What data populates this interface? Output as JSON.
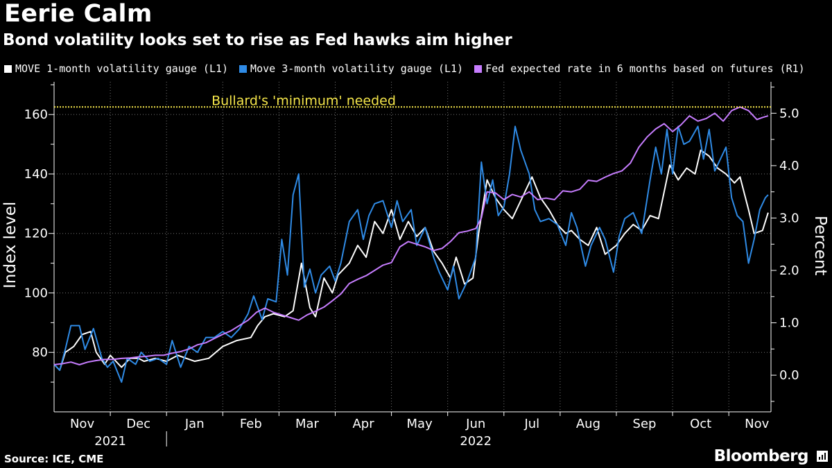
{
  "title": "Eerie Calm",
  "subtitle": "Bond volatility looks set to rise as Fed hawks aim higher",
  "source": "Source: ICE, CME",
  "brand": "Bloomberg",
  "chart_data": {
    "type": "line",
    "title": "Eerie Calm",
    "subtitle": "Bond volatility looks set to rise as Fed hawks aim higher",
    "x_unit": "months since Nov 1, 2021",
    "x_range": [
      0,
      12.75
    ],
    "x_ticks": [
      {
        "x": 0.5,
        "label": "Nov"
      },
      {
        "x": 1.5,
        "label": "Dec"
      },
      {
        "x": 2.5,
        "label": "Jan"
      },
      {
        "x": 3.5,
        "label": "Feb"
      },
      {
        "x": 4.5,
        "label": "Mar"
      },
      {
        "x": 5.5,
        "label": "Apr"
      },
      {
        "x": 6.5,
        "label": "May"
      },
      {
        "x": 7.5,
        "label": "Jun"
      },
      {
        "x": 8.5,
        "label": "Jul"
      },
      {
        "x": 9.5,
        "label": "Aug"
      },
      {
        "x": 10.5,
        "label": "Sep"
      },
      {
        "x": 11.5,
        "label": "Oct"
      },
      {
        "x": 12.5,
        "label": "Nov"
      }
    ],
    "year_labels": [
      {
        "x": 1.0,
        "label": "2021"
      },
      {
        "x": 7.5,
        "label": "2022"
      }
    ],
    "left_axis": {
      "label": "Index level",
      "range": [
        60,
        171
      ],
      "ticks": [
        80,
        100,
        120,
        140,
        160
      ]
    },
    "right_axis": {
      "label": "Percent",
      "range": [
        -0.7,
        5.6
      ],
      "ticks": [
        0.0,
        1.0,
        2.0,
        3.0,
        4.0,
        5.0
      ],
      "tick_labels": [
        "0.0",
        "1.0",
        "2.0",
        "3.0",
        "4.0",
        "5.0"
      ]
    },
    "reference_line": {
      "axis": "right",
      "value": 5.12,
      "label": "Bullard's 'minimum' needed",
      "color": "#f5e64a"
    },
    "series": [
      {
        "name": "MOVE 1-month volatility gauge (L1)",
        "axis": "left",
        "color": "#ffffff",
        "x": [
          0.0,
          0.1,
          0.2,
          0.35,
          0.5,
          0.65,
          0.75,
          0.9,
          1.0,
          1.2,
          1.35,
          1.5,
          1.6,
          1.8,
          2.0,
          2.2,
          2.5,
          2.75,
          3.0,
          3.25,
          3.5,
          3.62,
          3.75,
          3.9,
          4.1,
          4.25,
          4.4,
          4.55,
          4.65,
          4.8,
          4.95,
          5.05,
          5.25,
          5.4,
          5.55,
          5.7,
          5.85,
          6.0,
          6.15,
          6.3,
          6.45,
          6.6,
          6.75,
          6.9,
          7.05,
          7.15,
          7.3,
          7.45,
          7.55,
          7.7,
          7.85,
          8.0,
          8.15,
          8.3,
          8.5,
          8.65,
          8.8,
          8.95,
          9.1,
          9.2,
          9.35,
          9.5,
          9.65,
          9.8,
          10.0,
          10.15,
          10.3,
          10.45,
          10.6,
          10.75,
          10.85,
          10.95,
          11.1,
          11.25,
          11.4,
          11.5,
          11.65,
          11.8,
          11.95,
          12.1,
          12.2,
          12.35,
          12.45,
          12.6,
          12.7
        ],
        "y": [
          76,
          74,
          80,
          82,
          86,
          87,
          80,
          76,
          79,
          75,
          78,
          78,
          77,
          78,
          77,
          79,
          77,
          78,
          82,
          84,
          85,
          89,
          92,
          93,
          92,
          94,
          110,
          95,
          92,
          105,
          100,
          106,
          110,
          116,
          112,
          124,
          120,
          128,
          118,
          124,
          119,
          122,
          114,
          110,
          105,
          112,
          103,
          105,
          120,
          138,
          132,
          128,
          125,
          131,
          139,
          132,
          128,
          123,
          120,
          121,
          118,
          116,
          122,
          113,
          116,
          120,
          123,
          121,
          126,
          125,
          134,
          143,
          138,
          142,
          140,
          148,
          146,
          142,
          140,
          137,
          139,
          128,
          120,
          121,
          127
        ]
      },
      {
        "name": "Move 3-month volatility gauge (L1)",
        "axis": "left",
        "color": "#2f8be6",
        "x": [
          0.0,
          0.1,
          0.2,
          0.3,
          0.45,
          0.55,
          0.7,
          0.85,
          0.95,
          1.05,
          1.2,
          1.3,
          1.45,
          1.55,
          1.7,
          1.85,
          2.0,
          2.1,
          2.25,
          2.4,
          2.55,
          2.7,
          2.85,
          3.0,
          3.15,
          3.3,
          3.45,
          3.55,
          3.7,
          3.8,
          3.95,
          4.05,
          4.15,
          4.25,
          4.35,
          4.45,
          4.55,
          4.65,
          4.75,
          4.9,
          5.0,
          5.1,
          5.25,
          5.4,
          5.5,
          5.6,
          5.7,
          5.85,
          6.0,
          6.1,
          6.2,
          6.35,
          6.45,
          6.6,
          6.75,
          6.85,
          7.0,
          7.1,
          7.2,
          7.35,
          7.5,
          7.6,
          7.7,
          7.8,
          7.9,
          8.0,
          8.1,
          8.2,
          8.3,
          8.45,
          8.55,
          8.65,
          8.8,
          8.95,
          9.1,
          9.2,
          9.3,
          9.45,
          9.55,
          9.7,
          9.8,
          9.95,
          10.05,
          10.15,
          10.3,
          10.45,
          10.6,
          10.7,
          10.8,
          10.9,
          11.0,
          11.1,
          11.2,
          11.3,
          11.45,
          11.55,
          11.65,
          11.75,
          11.85,
          11.95,
          12.05,
          12.15,
          12.25,
          12.35,
          12.45,
          12.55,
          12.65,
          12.7
        ],
        "y": [
          76,
          74,
          81,
          89,
          89,
          81,
          88,
          78,
          75,
          77,
          70,
          78,
          76,
          80,
          77,
          78,
          76,
          84,
          75,
          82,
          80,
          85,
          85,
          87,
          85,
          88,
          93,
          99,
          91,
          98,
          97,
          118,
          106,
          133,
          140,
          102,
          108,
          100,
          106,
          109,
          104,
          110,
          124,
          128,
          118,
          126,
          130,
          131,
          122,
          131,
          124,
          128,
          116,
          122,
          112,
          107,
          101,
          109,
          98,
          104,
          112,
          144,
          130,
          138,
          126,
          129,
          140,
          156,
          148,
          140,
          128,
          124,
          125,
          123,
          116,
          127,
          122,
          109,
          116,
          122,
          118,
          107,
          119,
          125,
          127,
          120,
          138,
          149,
          140,
          155,
          140,
          156,
          150,
          151,
          156,
          145,
          155,
          141,
          145,
          149,
          132,
          126,
          124,
          110,
          118,
          128,
          132,
          133
        ]
      },
      {
        "name": "Fed expected rate in 6 months based on futures (R1)",
        "axis": "right",
        "color": "#c77dff",
        "x": [
          0.0,
          0.15,
          0.3,
          0.45,
          0.6,
          0.75,
          0.9,
          1.05,
          1.2,
          1.35,
          1.5,
          1.65,
          1.8,
          1.95,
          2.1,
          2.25,
          2.4,
          2.55,
          2.7,
          2.85,
          3.0,
          3.15,
          3.3,
          3.45,
          3.6,
          3.75,
          3.9,
          4.05,
          4.2,
          4.35,
          4.5,
          4.65,
          4.8,
          4.95,
          5.1,
          5.25,
          5.4,
          5.55,
          5.7,
          5.85,
          6.0,
          6.15,
          6.3,
          6.45,
          6.6,
          6.75,
          6.9,
          7.05,
          7.2,
          7.35,
          7.5,
          7.6,
          7.7,
          7.85,
          8.0,
          8.15,
          8.3,
          8.45,
          8.6,
          8.75,
          8.9,
          9.05,
          9.2,
          9.35,
          9.5,
          9.65,
          9.8,
          9.95,
          10.1,
          10.25,
          10.4,
          10.55,
          10.7,
          10.85,
          11.0,
          11.15,
          11.3,
          11.45,
          11.6,
          11.75,
          11.9,
          12.05,
          12.2,
          12.35,
          12.5,
          12.6,
          12.7
        ],
        "y": [
          0.2,
          0.22,
          0.25,
          0.2,
          0.25,
          0.28,
          0.3,
          0.3,
          0.32,
          0.33,
          0.35,
          0.36,
          0.38,
          0.38,
          0.42,
          0.45,
          0.5,
          0.58,
          0.62,
          0.7,
          0.78,
          0.85,
          0.95,
          1.05,
          1.2,
          1.28,
          1.2,
          1.15,
          1.1,
          1.05,
          1.15,
          1.22,
          1.3,
          1.42,
          1.55,
          1.75,
          1.83,
          1.9,
          2.0,
          2.1,
          2.15,
          2.45,
          2.55,
          2.5,
          2.45,
          2.38,
          2.42,
          2.55,
          2.72,
          2.75,
          2.8,
          3.0,
          3.5,
          3.48,
          3.35,
          3.45,
          3.4,
          3.5,
          3.35,
          3.38,
          3.35,
          3.52,
          3.5,
          3.55,
          3.72,
          3.7,
          3.78,
          3.85,
          3.9,
          4.05,
          4.35,
          4.55,
          4.7,
          4.8,
          4.65,
          4.78,
          4.95,
          4.85,
          4.9,
          5.0,
          4.85,
          5.05,
          5.12,
          5.05,
          4.88,
          4.92,
          4.95
        ]
      }
    ]
  }
}
